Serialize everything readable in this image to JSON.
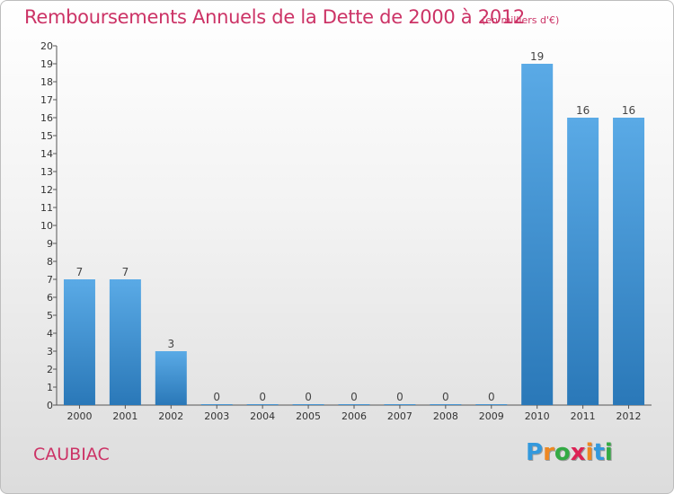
{
  "header": {
    "title": "Remboursements Annuels de la Dette de 2000 à 2012",
    "subtitle": "(en milliers d'€)"
  },
  "footer": {
    "town": "CAUBIAC",
    "logo_letters": [
      "P",
      "r",
      "o",
      "x",
      "i",
      "t",
      "i"
    ],
    "logo_colors": [
      "#3399dd",
      "#ee8822",
      "#33aa44",
      "#dd2255",
      "#ee8822",
      "#3399dd",
      "#33aa44"
    ]
  },
  "chart_data": {
    "type": "bar",
    "title": "Remboursements Annuels de la Dette de 2000 à 2012",
    "xlabel": "",
    "ylabel": "",
    "categories": [
      "2000",
      "2001",
      "2002",
      "2003",
      "2004",
      "2005",
      "2006",
      "2007",
      "2008",
      "2009",
      "2010",
      "2011",
      "2012"
    ],
    "values": [
      7,
      7,
      3,
      0,
      0,
      0,
      0,
      0,
      0,
      0,
      19,
      16,
      16
    ],
    "ylim": [
      0,
      20
    ],
    "yticks": [
      0,
      1,
      2,
      3,
      4,
      5,
      6,
      7,
      8,
      9,
      10,
      11,
      12,
      13,
      14,
      15,
      16,
      17,
      18,
      19,
      20
    ],
    "grid": false,
    "legend": "none",
    "bar_color_top": "#5aaae6",
    "bar_color_bottom": "#2a78b8"
  }
}
